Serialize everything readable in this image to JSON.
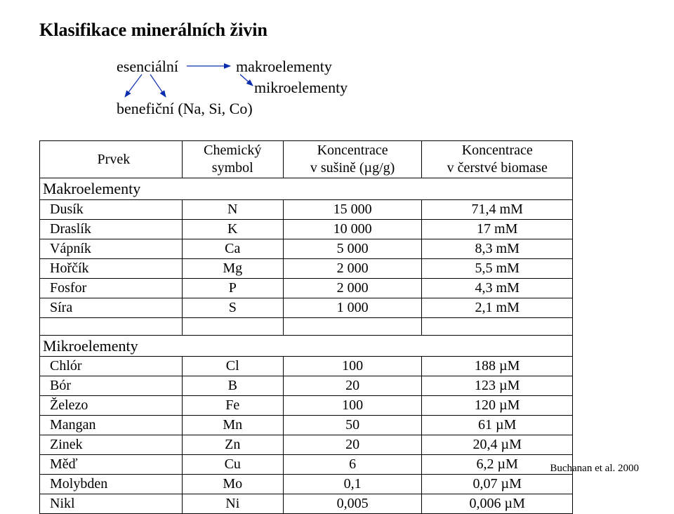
{
  "title": "Klasifikace minerálních živin",
  "diagram": {
    "esencialni": "esenciální",
    "makro": "makroelementy",
    "mikro": "mikroelementy",
    "benef": "benefiční (Na, Si, Co)"
  },
  "table": {
    "header": {
      "prvek": "Prvek",
      "symbol_l1": "Chemický",
      "symbol_l2": "symbol",
      "conc1_l1": "Koncentrace",
      "conc1_l2": "v sušině (µg/g)",
      "conc2_l1": "Koncentrace",
      "conc2_l2": "v čerstvé biomase"
    },
    "section_macro": "Makroelementy",
    "macro": [
      {
        "name": "Dusík",
        "sym": "N",
        "c1": "15 000",
        "c2": "71,4 mM"
      },
      {
        "name": "Draslík",
        "sym": "K",
        "c1": "10 000",
        "c2": "17 mM"
      },
      {
        "name": "Vápník",
        "sym": "Ca",
        "c1": "5 000",
        "c2": "8,3 mM"
      },
      {
        "name": "Hořčík",
        "sym": "Mg",
        "c1": "2 000",
        "c2": "5,5 mM"
      },
      {
        "name": "Fosfor",
        "sym": "P",
        "c1": "2 000",
        "c2": "4,3 mM"
      },
      {
        "name": "Síra",
        "sym": "S",
        "c1": "1 000",
        "c2": "2,1 mM"
      }
    ],
    "section_micro": "Mikroelementy",
    "micro": [
      {
        "name": "Chlór",
        "sym": "Cl",
        "c1": "100",
        "c2": "188 µM"
      },
      {
        "name": "Bór",
        "sym": "B",
        "c1": "20",
        "c2": "123 µM"
      },
      {
        "name": "Železo",
        "sym": "Fe",
        "c1": "100",
        "c2": "120 µM"
      },
      {
        "name": "Mangan",
        "sym": "Mn",
        "c1": "50",
        "c2": "61 µM"
      },
      {
        "name": "Zinek",
        "sym": "Zn",
        "c1": "20",
        "c2": "20,4 µM"
      },
      {
        "name": "Měď",
        "sym": "Cu",
        "c1": "6",
        "c2": "6,2 µM"
      },
      {
        "name": "Molybden",
        "sym": "Mo",
        "c1": "0,1",
        "c2": "0,07 µM"
      },
      {
        "name": "Nikl",
        "sym": "Ni",
        "c1": "0,005",
        "c2": "0,006 µM"
      }
    ]
  },
  "citation": "Buchanan et al. 2000",
  "style": {
    "arrow_color": "#0a2db0",
    "arrow_width": 1.2
  }
}
